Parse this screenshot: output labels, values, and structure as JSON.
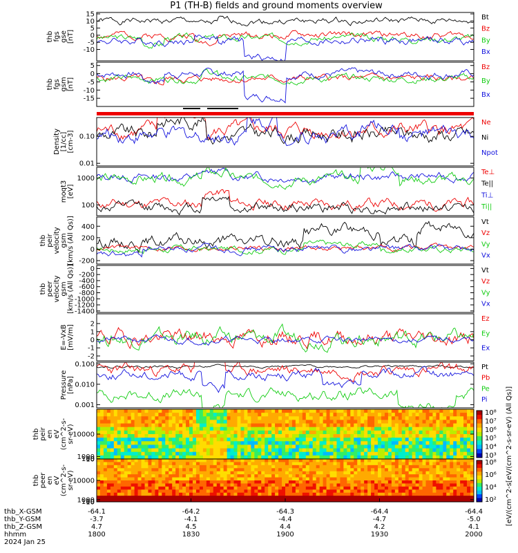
{
  "title": "P1 (TH-B) fields and ground moments overview",
  "date_label": "2024 Jan 25",
  "colors": {
    "black": "#000000",
    "red": "#ee0000",
    "green": "#11cc11",
    "blue": "#1111dd"
  },
  "chart_data": [
    {
      "id": "p1",
      "type": "line",
      "ylabel": [
        "thb",
        "fgs",
        "gse",
        "[nT]"
      ],
      "yrange": [
        -18,
        16
      ],
      "ticks": [
        15,
        10,
        5,
        0,
        -5,
        -10
      ],
      "series": [
        {
          "name": "Bt",
          "color": "black",
          "base": 10,
          "amp": 1.5,
          "seed": 1,
          "steps": [
            [
              0.26,
              0.32,
              -2
            ]
          ]
        },
        {
          "name": "Bz",
          "color": "red",
          "base": 0,
          "amp": 1.6,
          "seed": 2,
          "steps": [
            [
              0.26,
              0.32,
              -4
            ]
          ]
        },
        {
          "name": "By",
          "color": "green",
          "base": -2,
          "amp": 1.6,
          "seed": 3,
          "steps": [
            [
              0.12,
              0.18,
              -4
            ]
          ]
        },
        {
          "name": "Bx",
          "color": "blue",
          "base": -4,
          "amp": 1.8,
          "seed": 4,
          "steps": [
            [
              0.39,
              0.5,
              -12
            ],
            [
              0.26,
              0.32,
              3
            ]
          ]
        }
      ]
    },
    {
      "id": "p2",
      "type": "line",
      "ylabel": [
        "thb",
        "fgs",
        "gsm",
        "[nT]"
      ],
      "yrange": [
        -20,
        7
      ],
      "ticks": [
        5,
        0,
        -5,
        -10,
        -15
      ],
      "series": [
        {
          "name": "Bz",
          "color": "red",
          "base": -3,
          "amp": 1.4,
          "seed": 5,
          "steps": [
            [
              0.12,
              0.18,
              -3
            ]
          ]
        },
        {
          "name": "By",
          "color": "green",
          "base": -3,
          "amp": 1.4,
          "seed": 6,
          "steps": [
            [
              0.28,
              0.32,
              4
            ]
          ]
        },
        {
          "name": "Bx",
          "color": "blue",
          "base": 0,
          "amp": 1.5,
          "seed": 7,
          "steps": [
            [
              0.12,
              0.18,
              -4
            ],
            [
              0.39,
              0.5,
              -14
            ]
          ]
        }
      ]
    },
    {
      "id": "p4",
      "type": "line",
      "scale": "log",
      "ylabel": [
        "Density",
        "[1/cc]",
        "[cm-3]"
      ],
      "yrange": [
        0.008,
        0.5
      ],
      "ticks": [
        0.1,
        0.01
      ],
      "ticklabels": [
        "0.10",
        "0.01"
      ],
      "series": [
        {
          "name": "Ne",
          "color": "red",
          "base": 0.16,
          "amp": 0.35,
          "seed": 8,
          "steps": [
            [
              0.16,
              0.29,
              0.9
            ]
          ]
        },
        {
          "name": "Ni",
          "color": "black",
          "base": 0.12,
          "amp": 0.35,
          "seed": 9,
          "steps": [
            [
              0.16,
              0.29,
              0.8
            ]
          ]
        },
        {
          "name": "Npot",
          "color": "blue",
          "base": 0.11,
          "amp": 0.35,
          "seed": 10,
          "steps": [
            [
              0.4,
              0.48,
              0.9
            ],
            [
              0.7,
              0.8,
              0.4
            ]
          ]
        }
      ]
    },
    {
      "id": "p5",
      "type": "line",
      "scale": "log",
      "ylabel": [
        "moqt3",
        "[eV]"
      ],
      "yrange": [
        40,
        2500
      ],
      "ticks": [
        1000,
        100
      ],
      "ticklabels": [
        "1000",
        "100"
      ],
      "series": [
        {
          "name": "Te⊥",
          "color": "red",
          "base": 110,
          "amp": 0.25,
          "seed": 11,
          "steps": [
            [
              0.28,
              0.35,
              0.5
            ]
          ]
        },
        {
          "name": "Te||",
          "color": "black",
          "base": 80,
          "amp": 0.25,
          "seed": 12,
          "steps": [
            [
              0.28,
              0.35,
              0.5
            ]
          ]
        },
        {
          "name": "Ti⊥",
          "color": "blue",
          "base": 1100,
          "amp": 0.2,
          "seed": 13,
          "steps": [
            [
              0.28,
              0.35,
              0.15
            ]
          ]
        },
        {
          "name": "Ti||",
          "color": "green",
          "base": 900,
          "amp": 0.25,
          "seed": 14,
          "steps": [
            [
              0.28,
              0.35,
              0.2
            ],
            [
              0.7,
              0.8,
              0.6
            ]
          ]
        }
      ]
    },
    {
      "id": "p6",
      "type": "line",
      "ylabel": [
        "thb",
        "peir",
        "velocity",
        "gsm",
        "[km/s (All Qs)]"
      ],
      "yrange": [
        -260,
        560
      ],
      "ticks": [
        400,
        200,
        0,
        -200
      ],
      "series": [
        {
          "name": "Vt",
          "color": "black",
          "base": 130,
          "amp": 70,
          "seed": 15,
          "steps": [
            [
              0.55,
              0.75,
              200
            ],
            [
              0.85,
              1.0,
              250
            ]
          ]
        },
        {
          "name": "Vz",
          "color": "red",
          "base": 20,
          "amp": 30,
          "seed": 16,
          "steps": []
        },
        {
          "name": "Vy",
          "color": "green",
          "base": 0,
          "amp": 40,
          "seed": 17,
          "steps": [
            [
              0.55,
              0.75,
              80
            ]
          ]
        },
        {
          "name": "Vx",
          "color": "blue",
          "base": 10,
          "amp": 40,
          "seed": 18,
          "steps": [
            [
              0.0,
              0.12,
              -120
            ]
          ]
        }
      ]
    },
    {
      "id": "p7",
      "type": "empty",
      "ylabel": [
        "thb",
        "peer",
        "velocity",
        "gsm",
        "[km/s (All Qs)]"
      ],
      "yrange": [
        -1450,
        100
      ],
      "ticks": [
        0,
        -200,
        -400,
        -600,
        -800,
        -1000,
        -1200,
        -1400
      ],
      "series": [
        {
          "name": "Vt",
          "color": "black"
        },
        {
          "name": "Vz",
          "color": "red"
        },
        {
          "name": "Vy",
          "color": "green"
        },
        {
          "name": "Vx",
          "color": "blue"
        }
      ]
    },
    {
      "id": "p8",
      "type": "line",
      "ylabel": [
        "E=-VxB",
        "[mV/m]"
      ],
      "yrange": [
        -2.6,
        3.2
      ],
      "ticks": [
        2,
        1,
        0,
        -1,
        -2
      ],
      "series": [
        {
          "name": "Ez",
          "color": "red",
          "base": 0.3,
          "amp": 0.6,
          "seed": 19,
          "steps": []
        },
        {
          "name": "Ey",
          "color": "green",
          "base": 0.2,
          "amp": 0.6,
          "seed": 20,
          "steps": []
        },
        {
          "name": "Ex",
          "color": "blue",
          "base": 0,
          "amp": 0.25,
          "seed": 21,
          "steps": []
        }
      ]
    },
    {
      "id": "p9",
      "type": "line",
      "scale": "log",
      "ylabel": [
        "Pressure",
        "[nPa]"
      ],
      "yrange": [
        0.0007,
        0.12
      ],
      "ticks": [
        0.1,
        0.01,
        0.001
      ],
      "ticklabels": [
        "0.100",
        "0.010",
        "0.001"
      ],
      "series": [
        {
          "name": "Pt",
          "color": "black",
          "base": 0.075,
          "amp": 0.08,
          "seed": 22,
          "steps": []
        },
        {
          "name": "Pb",
          "color": "red",
          "base": 0.05,
          "amp": 0.35,
          "seed": 23,
          "steps": [
            [
              0.26,
              0.34,
              1.3
            ]
          ]
        },
        {
          "name": "Pe",
          "color": "green",
          "base": 0.003,
          "amp": 0.35,
          "seed": 24,
          "steps": [
            [
              0.28,
              0.34,
              -1.2
            ],
            [
              0.8,
              0.95,
              -1.0
            ]
          ]
        },
        {
          "name": "Pi",
          "color": "blue",
          "base": 0.03,
          "amp": 0.3,
          "seed": 25,
          "steps": [
            [
              0.28,
              0.34,
              -1.4
            ],
            [
              0.6,
              0.7,
              -0.8
            ]
          ]
        }
      ]
    },
    {
      "id": "p10",
      "type": "heatmap",
      "ylabel": [
        "thb",
        "peir",
        "en",
        "eV",
        "(cm^2-s-",
        "sr-eV)"
      ],
      "yrange": [
        6,
        20000
      ],
      "ticks": [
        10000,
        1000,
        100,
        10
      ],
      "ticklabels": [
        "10000",
        "1000",
        "100",
        "10"
      ],
      "seed": 26
    },
    {
      "id": "p11",
      "type": "heatmap",
      "ylabel": [
        "thb",
        "peer",
        "en",
        "eV",
        "(cm^2-s-",
        "sr-eV)"
      ],
      "yrange": [
        6,
        20000
      ],
      "ticks": [
        10000,
        1000,
        100,
        10
      ],
      "ticklabels": [
        "10000",
        "1000",
        "100",
        "10"
      ],
      "seed": 27
    }
  ],
  "colorbars": [
    {
      "labels": [
        "10⁸",
        "10⁷",
        "10⁶",
        "10⁵",
        "10⁴",
        "10³"
      ]
    },
    {
      "labels": [
        "10⁸",
        "10⁶",
        "10⁴",
        "10²"
      ]
    }
  ],
  "colorbar_title": "[eV/(cm^2-s[eV/(cm^2-s-sr-eV) (All Qs)]",
  "x_axis": {
    "rows": [
      "thb_X-GSM",
      "thb_Y-GSM",
      "thb_Z-GSM",
      "hhmm",
      "2024 Jan 25"
    ],
    "columns": [
      [
        "-64.1",
        "-3.7",
        "4.7",
        "1800"
      ],
      [
        "-64.2",
        "-4.1",
        "4.5",
        "1830"
      ],
      [
        "-64.3",
        "-4.4",
        "4.4",
        "1900"
      ],
      [
        "-64.4",
        "-4.7",
        "4.2",
        "1930"
      ],
      [
        "-64.4",
        "-5.0",
        "4.1",
        "2000"
      ]
    ]
  }
}
